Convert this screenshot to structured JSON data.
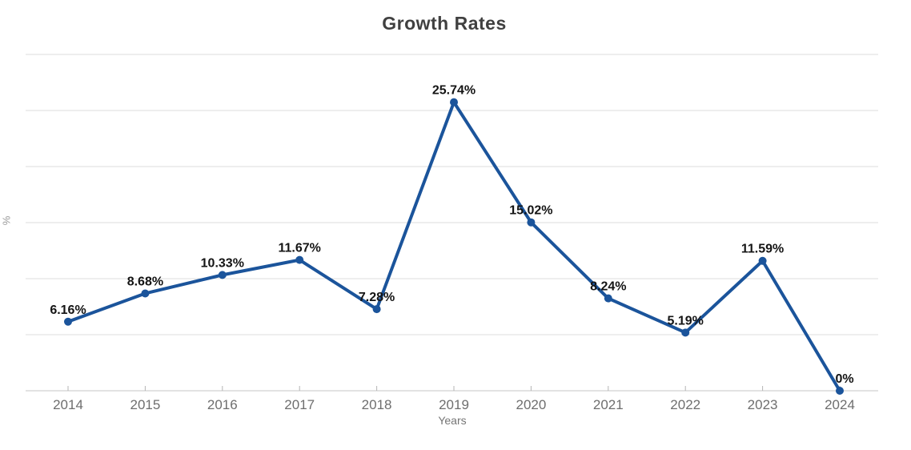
{
  "chart_data": {
    "type": "line",
    "title": "Growth Rates",
    "xlabel": "Years",
    "ylabel": "%",
    "categories": [
      "2014",
      "2015",
      "2016",
      "2017",
      "2018",
      "2019",
      "2020",
      "2021",
      "2022",
      "2023",
      "2024"
    ],
    "values": [
      6.16,
      8.68,
      10.33,
      11.67,
      7.28,
      25.74,
      15.02,
      8.24,
      5.19,
      11.59,
      0
    ],
    "point_labels": [
      "6.16%",
      "8.68%",
      "10.33%",
      "11.67%",
      "7.28%",
      "25.74%",
      "15.02%",
      "8.24%",
      "5.19%",
      "11.59%",
      "0%"
    ],
    "ylim": [
      0,
      30
    ],
    "grid_step": 5,
    "grid": true,
    "legend": "none",
    "y_tick_labels_shown": false,
    "colors": {
      "line": "#1b549b",
      "marker": "#1b549b",
      "grid": "#dddddd",
      "axis": "#c4c4c4",
      "tick": "#b5b5b5",
      "title_text": "#404040",
      "point_label_text": "#141414",
      "axis_text": "#6e6e6e"
    }
  }
}
